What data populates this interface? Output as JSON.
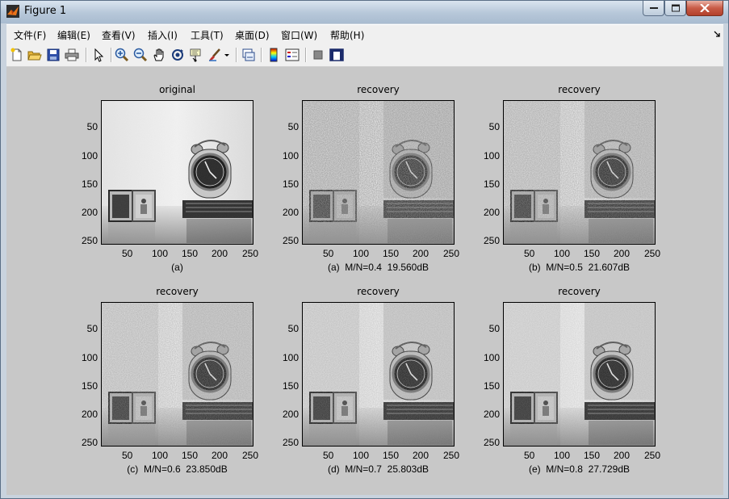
{
  "window": {
    "title": "Figure 1"
  },
  "menu": [
    "文件(F)",
    "编辑(E)",
    "查看(V)",
    "插入(I)",
    "工具(T)",
    "桌面(D)",
    "窗口(W)",
    "帮助(H)"
  ],
  "toolbar": [
    {
      "name": "new-figure-icon"
    },
    {
      "name": "open-file-icon"
    },
    {
      "name": "save-icon"
    },
    {
      "name": "print-icon"
    },
    {
      "name": "edit-plot-arrow-icon"
    },
    {
      "name": "zoom-in-icon"
    },
    {
      "name": "zoom-out-icon"
    },
    {
      "name": "pan-hand-icon"
    },
    {
      "name": "rotate-3d-icon"
    },
    {
      "name": "data-cursor-icon"
    },
    {
      "name": "brush-icon"
    },
    {
      "name": "brush-dropdown-icon"
    },
    {
      "name": "link-plot-icon"
    },
    {
      "name": "colorbar-icon"
    },
    {
      "name": "legend-icon"
    },
    {
      "name": "hide-plot-tools-icon"
    },
    {
      "name": "show-plot-tools-icon"
    }
  ],
  "x_ticks": [
    "50",
    "100",
    "150",
    "200",
    "250"
  ],
  "y_ticks": [
    "50",
    "100",
    "150",
    "200",
    "250"
  ],
  "subplots": [
    {
      "title": "original",
      "caption": "(a)"
    },
    {
      "title": "recovery",
      "caption": "(a)  M/N=0.4  19.560dB"
    },
    {
      "title": "recovery",
      "caption": "(b)  M/N=0.5  21.607dB"
    },
    {
      "title": "recovery",
      "caption": "(c)  M/N=0.6  23.850dB"
    },
    {
      "title": "recovery",
      "caption": "(d)  M/N=0.7  25.803dB"
    },
    {
      "title": "recovery",
      "caption": "(e)  M/N=0.8  27.729dB"
    }
  ]
}
